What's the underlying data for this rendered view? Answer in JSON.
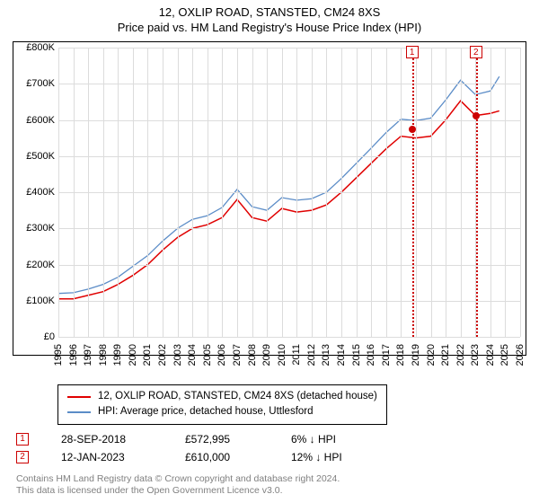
{
  "title": {
    "line1": "12, OXLIP ROAD, STANSTED, CM24 8XS",
    "line2": "Price paid vs. HM Land Registry's House Price Index (HPI)"
  },
  "chart": {
    "type": "line",
    "background_color": "#ffffff",
    "grid_color": "#dcdcdc",
    "border_color": "#000000",
    "ylim": [
      0,
      800000
    ],
    "ytick_step": 100000,
    "y_ticks": [
      "£0",
      "£100K",
      "£200K",
      "£300K",
      "£400K",
      "£500K",
      "£600K",
      "£700K",
      "£800K"
    ],
    "x_years": [
      1995,
      1996,
      1997,
      1998,
      1999,
      2000,
      2001,
      2002,
      2003,
      2004,
      2005,
      2006,
      2007,
      2008,
      2009,
      2010,
      2011,
      2012,
      2013,
      2014,
      2015,
      2016,
      2017,
      2018,
      2019,
      2020,
      2021,
      2022,
      2023,
      2024,
      2025,
      2026
    ],
    "xlim": [
      1995,
      2026
    ],
    "series": [
      {
        "name": "12, OXLIP ROAD, STANSTED, CM24 8XS (detached house)",
        "color": "#e00000",
        "width": 1.5,
        "data": [
          [
            1995,
            105000
          ],
          [
            1996,
            105000
          ],
          [
            1997,
            115000
          ],
          [
            1998,
            125000
          ],
          [
            1999,
            145000
          ],
          [
            2000,
            170000
          ],
          [
            2001,
            200000
          ],
          [
            2002,
            240000
          ],
          [
            2003,
            275000
          ],
          [
            2004,
            300000
          ],
          [
            2005,
            310000
          ],
          [
            2006,
            330000
          ],
          [
            2007,
            380000
          ],
          [
            2008,
            330000
          ],
          [
            2009,
            320000
          ],
          [
            2010,
            355000
          ],
          [
            2011,
            345000
          ],
          [
            2012,
            350000
          ],
          [
            2013,
            365000
          ],
          [
            2014,
            400000
          ],
          [
            2015,
            440000
          ],
          [
            2016,
            480000
          ],
          [
            2017,
            520000
          ],
          [
            2018,
            555000
          ],
          [
            2019,
            550000
          ],
          [
            2020,
            555000
          ],
          [
            2021,
            600000
          ],
          [
            2022,
            653000
          ],
          [
            2023,
            612000
          ],
          [
            2024,
            618000
          ],
          [
            2024.6,
            625000
          ]
        ]
      },
      {
        "name": "HPI: Average price, detached house, Uttlesford",
        "color": "#5b8cc7",
        "width": 1.3,
        "data": [
          [
            1995,
            120000
          ],
          [
            1996,
            122000
          ],
          [
            1997,
            132000
          ],
          [
            1998,
            145000
          ],
          [
            1999,
            165000
          ],
          [
            2000,
            195000
          ],
          [
            2001,
            225000
          ],
          [
            2002,
            265000
          ],
          [
            2003,
            300000
          ],
          [
            2004,
            325000
          ],
          [
            2005,
            335000
          ],
          [
            2006,
            358000
          ],
          [
            2007,
            408000
          ],
          [
            2008,
            360000
          ],
          [
            2009,
            350000
          ],
          [
            2010,
            385000
          ],
          [
            2011,
            378000
          ],
          [
            2012,
            382000
          ],
          [
            2013,
            400000
          ],
          [
            2014,
            438000
          ],
          [
            2015,
            480000
          ],
          [
            2016,
            522000
          ],
          [
            2017,
            565000
          ],
          [
            2018,
            602000
          ],
          [
            2019,
            598000
          ],
          [
            2020,
            605000
          ],
          [
            2021,
            655000
          ],
          [
            2022,
            710000
          ],
          [
            2023,
            670000
          ],
          [
            2024,
            680000
          ],
          [
            2024.6,
            720000
          ]
        ]
      }
    ],
    "markers": [
      {
        "idx": "1",
        "year": 2018.74,
        "price": 572995
      },
      {
        "idx": "2",
        "year": 2023.03,
        "price": 610000
      }
    ]
  },
  "legend": {
    "items": [
      {
        "color": "#e00000",
        "label": "12, OXLIP ROAD, STANSTED, CM24 8XS (detached house)"
      },
      {
        "color": "#5b8cc7",
        "label": "HPI: Average price, detached house, Uttlesford"
      }
    ]
  },
  "sales": [
    {
      "idx": "1",
      "date": "28-SEP-2018",
      "price": "£572,995",
      "delta_pct": "6%",
      "delta_dir": "↓",
      "delta_ref": "HPI"
    },
    {
      "idx": "2",
      "date": "12-JAN-2023",
      "price": "£610,000",
      "delta_pct": "12%",
      "delta_dir": "↓",
      "delta_ref": "HPI"
    }
  ],
  "footer": {
    "line1": "Contains HM Land Registry data © Crown copyright and database right 2024.",
    "line2": "This data is licensed under the Open Government Licence v3.0."
  }
}
